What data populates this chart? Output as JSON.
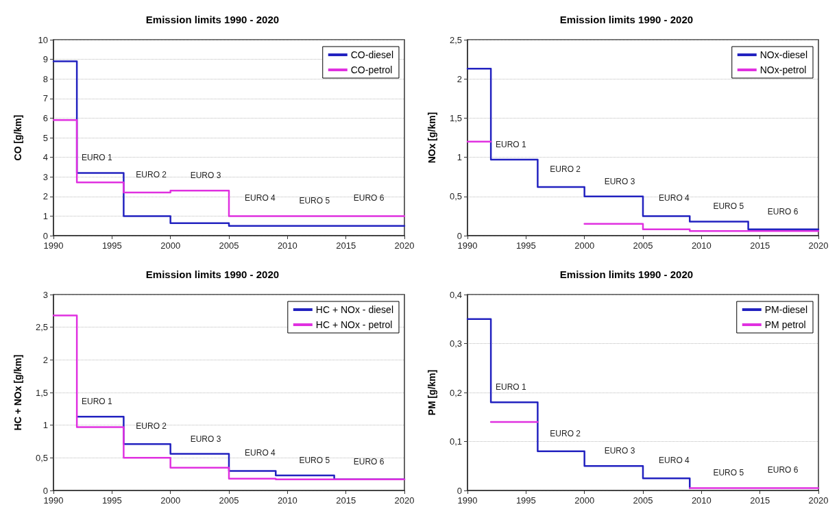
{
  "chart_data": [
    {
      "type": "step",
      "title": "Emission limits 1990 - 2020",
      "ylabel": "CO [g/km]",
      "xlim": [
        1990,
        2020
      ],
      "xticks": [
        1990,
        1995,
        2000,
        2005,
        2010,
        2015,
        2020
      ],
      "ylim": [
        0,
        10
      ],
      "yticks": [
        0,
        1,
        2,
        3,
        4,
        5,
        6,
        7,
        8,
        9,
        10
      ],
      "grid": "y",
      "legend": "top right",
      "marker": "none",
      "line_style": "solid",
      "series": [
        {
          "name": "CO-diesel",
          "color": "#2222c0",
          "x": [
            1990,
            1992,
            1996,
            2000,
            2005,
            2020
          ],
          "values": [
            8.9,
            3.2,
            1.0,
            0.64,
            0.5,
            0.5
          ]
        },
        {
          "name": "CO-petrol",
          "color": "#e030e0",
          "x": [
            1990,
            1992,
            1996,
            2000,
            2005,
            2020
          ],
          "values": [
            5.9,
            2.72,
            2.2,
            2.3,
            1.0,
            1.0
          ]
        }
      ],
      "annotations": [
        "EURO 1",
        "EURO 2",
        "EURO 3",
        "EURO 4",
        "EURO 5",
        "EURO 6"
      ]
    },
    {
      "type": "step",
      "title": "Emission limits 1990 - 2020",
      "ylabel": "NOx [g/km]",
      "xlim": [
        1990,
        2020
      ],
      "xticks": [
        1990,
        1995,
        2000,
        2005,
        2010,
        2015,
        2020
      ],
      "ylim": [
        0,
        2.5
      ],
      "yticks": [
        0,
        {
          "value": 0.5,
          "label": "0,5"
        },
        1,
        {
          "value": 1.5,
          "label": "1,5"
        },
        2,
        {
          "value": 2.5,
          "label": "2,5"
        }
      ],
      "grid": "y",
      "legend": "top right",
      "marker": "none",
      "line_style": "solid",
      "series": [
        {
          "name": "NOx-diesel",
          "color": "#2222c0",
          "x": [
            1990,
            1992,
            1996,
            2000,
            2005,
            2009,
            2014,
            2020
          ],
          "values": [
            2.13,
            0.97,
            0.62,
            0.5,
            0.25,
            0.18,
            0.08,
            0.08
          ]
        },
        {
          "name": "NOx-petrol",
          "color": "#e030e0",
          "x": [
            1990,
            1992
          ],
          "values": [
            1.2,
            1.2
          ]
        },
        {
          "color": "#e030e0",
          "x": [
            2000,
            2005,
            2009,
            2020
          ],
          "values": [
            0.15,
            0.08,
            0.06,
            0.06
          ]
        }
      ],
      "annotations": [
        "EURO 1",
        "EURO 2",
        "EURO 3",
        "EURO 4",
        "EURO 5",
        "EURO 6"
      ]
    },
    {
      "type": "step",
      "title": "Emission limits 1990 - 2020",
      "ylabel": "HC + NOx [g/km]",
      "xlim": [
        1990,
        2020
      ],
      "xticks": [
        1990,
        1995,
        2000,
        2005,
        2010,
        2015,
        2020
      ],
      "ylim": [
        0,
        3
      ],
      "yticks": [
        0,
        {
          "value": 0.5,
          "label": "0,5"
        },
        1,
        {
          "value": 1.5,
          "label": "1,5"
        },
        2,
        {
          "value": 2.5,
          "label": "2,5"
        },
        3
      ],
      "grid": "y",
      "legend": "top right",
      "marker": "none",
      "line_style": "solid",
      "series": [
        {
          "name": "HC + NOx - diesel",
          "color": "#2222c0",
          "x": [
            1992,
            1996,
            2000,
            2005,
            2009,
            2014,
            2020
          ],
          "values": [
            1.13,
            0.71,
            0.56,
            0.3,
            0.23,
            0.17,
            0.17
          ]
        },
        {
          "name": "HC + NOx - petrol",
          "color": "#e030e0",
          "x": [
            1990,
            1992,
            1996,
            2000,
            2005,
            2009,
            2020
          ],
          "values": [
            2.68,
            0.97,
            0.5,
            0.35,
            0.18,
            0.17,
            0.17
          ]
        }
      ],
      "annotations": [
        "EURO 1",
        "EURO 2",
        "EURO 3",
        "EURO 4",
        "EURO 5",
        "EURO 6"
      ]
    },
    {
      "type": "step",
      "title": "Emission limits 1990 - 2020",
      "ylabel": "PM [g/km]",
      "xlim": [
        1990,
        2020
      ],
      "xticks": [
        1990,
        1995,
        2000,
        2005,
        2010,
        2015,
        2020
      ],
      "ylim": [
        0,
        0.4
      ],
      "yticks": [
        0,
        {
          "value": 0.1,
          "label": "0,1"
        },
        {
          "value": 0.2,
          "label": "0,2"
        },
        {
          "value": 0.3,
          "label": "0,3"
        },
        {
          "value": 0.4,
          "label": "0,4"
        }
      ],
      "grid": "y",
      "legend": "top right",
      "marker": "none",
      "line_style": "solid",
      "series": [
        {
          "name": "PM-diesel",
          "color": "#2222c0",
          "x": [
            1990,
            1992,
            1996,
            2000,
            2005,
            2009
          ],
          "values": [
            0.35,
            0.18,
            0.08,
            0.05,
            0.025,
            0.005
          ]
        },
        {
          "name": "PM petrol",
          "color": "#e030e0",
          "x": [
            1992,
            1996
          ],
          "values": [
            0.14,
            0.14
          ]
        },
        {
          "color": "#e030e0",
          "x": [
            2009,
            2020
          ],
          "values": [
            0.005,
            0.005
          ]
        }
      ],
      "annotations": [
        "EURO 1",
        "EURO 2",
        "EURO 3",
        "EURO 4",
        "EURO 5",
        "EURO 6"
      ]
    }
  ]
}
